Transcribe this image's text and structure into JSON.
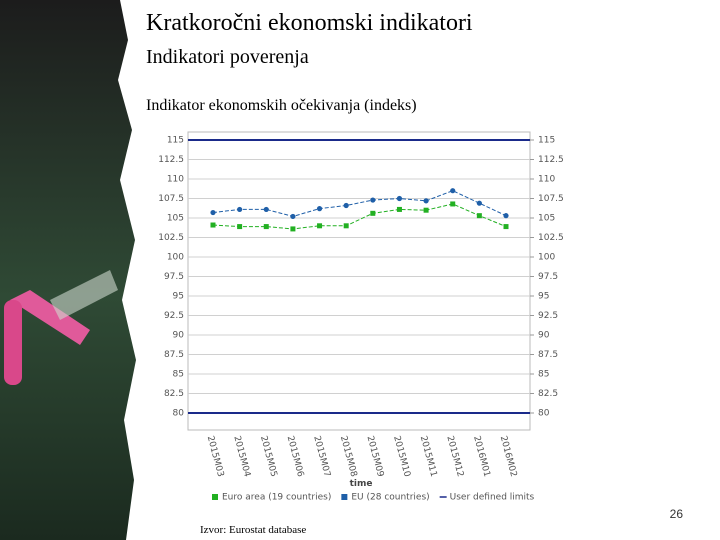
{
  "header": {
    "title": "Kratkoročni ekonomski indikatori",
    "subtitle": "Indikatori poverenja"
  },
  "chart_data": {
    "type": "line",
    "title": "Indikator ekonomskih očekivanja (indeks)",
    "x_label": "time",
    "categories": [
      "2015M03",
      "2015M04",
      "2015M05",
      "2015M06",
      "2015M07",
      "2015M08",
      "2015M09",
      "2015M10",
      "2015M11",
      "2015M12",
      "2016M01",
      "2016M02"
    ],
    "series": [
      {
        "name": "Euro area (19 countries)",
        "color": "#22b022",
        "marker": "square",
        "values": [
          104.1,
          103.9,
          103.9,
          103.6,
          104.0,
          104.0,
          105.6,
          106.1,
          106.0,
          106.8,
          105.3,
          103.9
        ]
      },
      {
        "name": "EU (28 countries)",
        "color": "#1f5fa8",
        "marker": "circle",
        "values": [
          105.7,
          106.1,
          106.1,
          105.2,
          106.2,
          106.6,
          107.3,
          107.5,
          107.2,
          108.5,
          106.9,
          105.3
        ]
      }
    ],
    "limits": {
      "name": "User defined limits",
      "color": "#1a2a8a",
      "values": [
        80,
        115
      ]
    },
    "ylim": [
      80,
      115
    ],
    "yticks": [
      80,
      82.5,
      85,
      87.5,
      90,
      92.5,
      95,
      97.5,
      100,
      102.5,
      105,
      107.5,
      110,
      112.5,
      115
    ],
    "y2lim": [
      80,
      115
    ],
    "y2ticks": [
      80,
      82.5,
      85,
      87.5,
      90,
      92.5,
      95,
      97.5,
      100,
      102.5,
      105,
      107.5,
      110,
      112.5,
      115
    ],
    "grid": true
  },
  "footer": {
    "source": "Izvor: Eurostat database",
    "page": "26"
  }
}
